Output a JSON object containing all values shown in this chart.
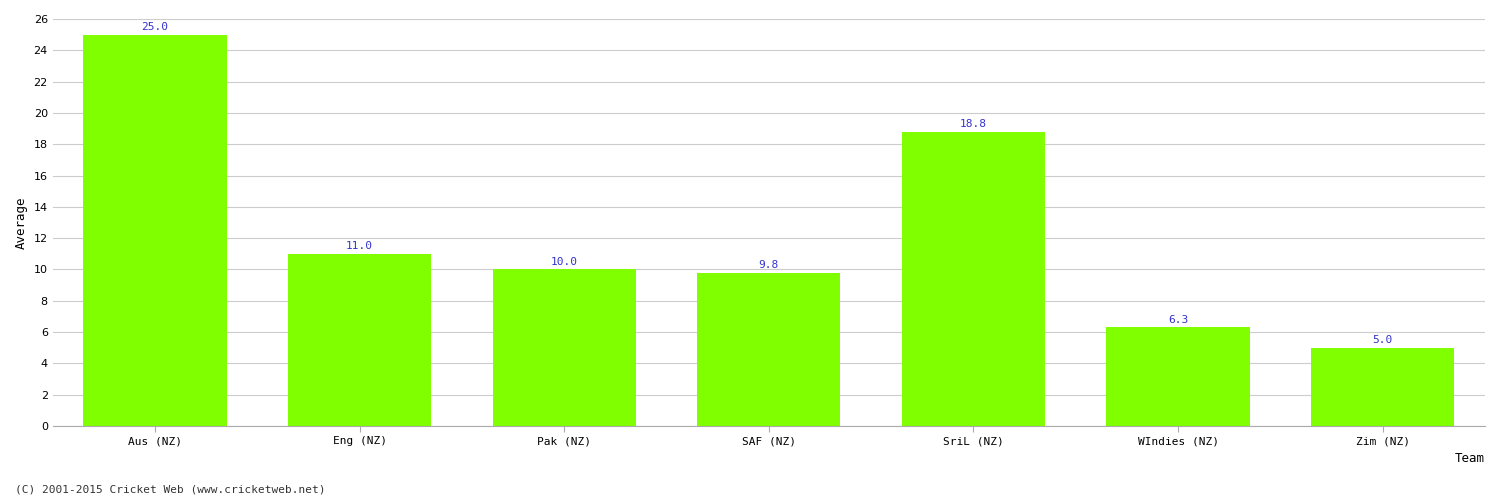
{
  "categories": [
    "Aus (NZ)",
    "Eng (NZ)",
    "Pak (NZ)",
    "SAF (NZ)",
    "SriL (NZ)",
    "WIndies (NZ)",
    "Zim (NZ)"
  ],
  "values": [
    25.0,
    11.0,
    10.0,
    9.8,
    18.8,
    6.3,
    5.0
  ],
  "bar_color": "#7fff00",
  "bar_edge_color": "#7fff00",
  "label_color": "#3333cc",
  "ylabel": "Average",
  "xlabel": "Team",
  "ylim": [
    0,
    26
  ],
  "yticks": [
    0,
    2,
    4,
    6,
    8,
    10,
    12,
    14,
    16,
    18,
    20,
    22,
    24,
    26
  ],
  "grid_color": "#cccccc",
  "background_color": "#ffffff",
  "label_fontsize": 8,
  "axis_label_fontsize": 9,
  "tick_label_fontsize": 8,
  "footer_text": "(C) 2001-2015 Cricket Web (www.cricketweb.net)"
}
